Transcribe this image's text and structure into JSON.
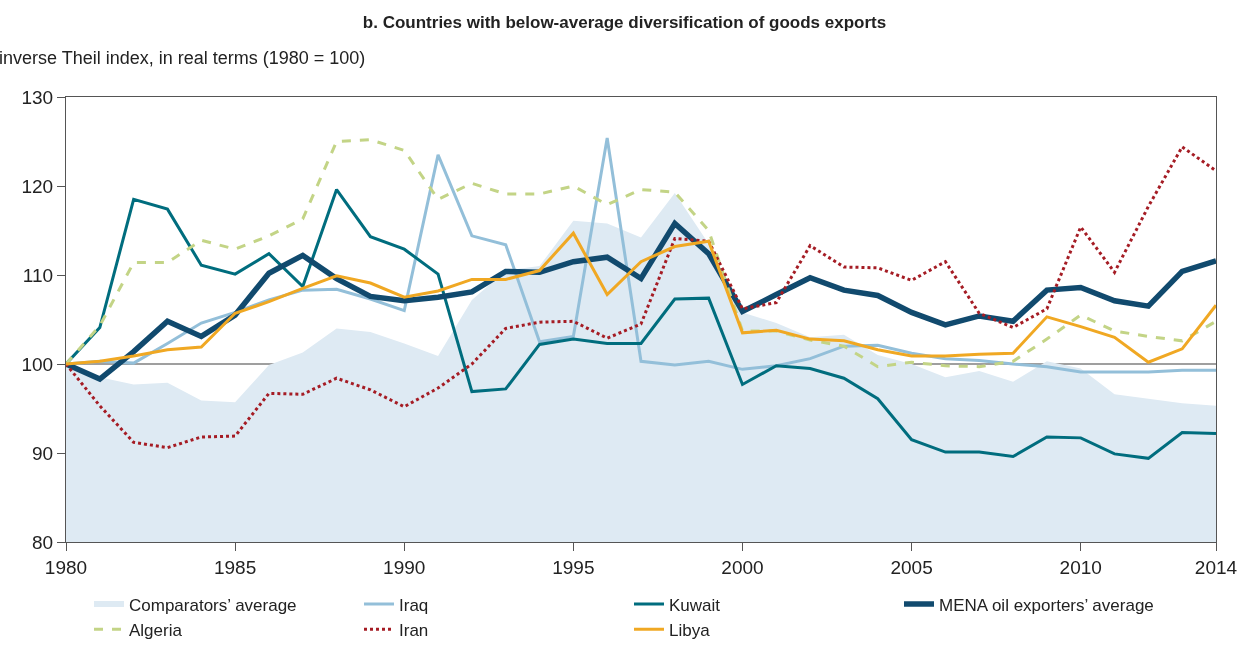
{
  "chart_data": {
    "type": "line",
    "title": "b. Countries with below-average diversification of goods exports",
    "ylabel": "inverse Theil index, in real terms (1980 = 100)",
    "x": [
      1980,
      1981,
      1982,
      1983,
      1984,
      1985,
      1986,
      1987,
      1988,
      1989,
      1990,
      1991,
      1992,
      1993,
      1994,
      1995,
      1996,
      1997,
      1998,
      1999,
      2000,
      2001,
      2002,
      2003,
      2004,
      2005,
      2006,
      2007,
      2008,
      2009,
      2010,
      2011,
      2012,
      2013,
      2014
    ],
    "xlim": [
      1980,
      2014
    ],
    "xticks": [
      1980,
      1985,
      1990,
      1995,
      2000,
      2005,
      2010,
      2014
    ],
    "ylim": [
      80,
      130
    ],
    "yticks": [
      80,
      90,
      100,
      110,
      120,
      130
    ],
    "grid": false,
    "legend": "bottom",
    "marker": "none",
    "ref_lines": [
      {
        "axis": "y",
        "value": 100,
        "color": "#7f7f7f"
      }
    ],
    "series": [
      {
        "name": "Comparators’ average",
        "type": "area",
        "color": "#deeaf3",
        "values": [
          100,
          98.5,
          97.7,
          97.9,
          95.9,
          95.7,
          99.9,
          101.3,
          104,
          103.6,
          102.3,
          100.9,
          107.2,
          110.5,
          111,
          116.1,
          115.8,
          114.2,
          119.2,
          113.5,
          105.8,
          104.6,
          103,
          103.3,
          101,
          100,
          98.5,
          99.2,
          98,
          100.3,
          99.5,
          96.6,
          96.1,
          95.6,
          95.3
        ]
      },
      {
        "name": "Iraq",
        "line_style": "solid",
        "color": "#93bfd9",
        "values": [
          100,
          100.3,
          100.1,
          102.3,
          104.6,
          105.8,
          107.2,
          108.3,
          108.4,
          107.3,
          106,
          123.5,
          114.4,
          113.4,
          102.5,
          103.1,
          125.4,
          100.3,
          99.9,
          100.3,
          99.4,
          99.8,
          100.6,
          102,
          102.1,
          101.2,
          100.6,
          100.4,
          100,
          99.7,
          99.1,
          99.1,
          99.1,
          99.3,
          99.3
        ]
      },
      {
        "name": "Kuwait",
        "line_style": "solid",
        "color": "#006d7e",
        "values": [
          100,
          104.1,
          118.5,
          117.4,
          111.1,
          110.1,
          112.4,
          108.7,
          119.6,
          114.3,
          112.9,
          110.1,
          96.9,
          97.2,
          102.2,
          102.8,
          102.3,
          102.3,
          107.3,
          107.4,
          97.7,
          99.8,
          99.5,
          98.4,
          96.1,
          91.5,
          90.1,
          90.1,
          89.6,
          91.8,
          91.7,
          89.9,
          89.4,
          92.3,
          92.2
        ]
      },
      {
        "name": "MENA oil exporters’ average",
        "line_style": "solid",
        "color": "#114a6e",
        "values": [
          100,
          98.3,
          101.4,
          104.8,
          103.1,
          105.5,
          110.2,
          112.2,
          109.6,
          107.6,
          107.1,
          107.5,
          108.1,
          110.4,
          110.3,
          111.5,
          112,
          109.6,
          115.8,
          112.4,
          105.9,
          107.8,
          109.7,
          108.3,
          107.7,
          105.8,
          104.4,
          105.4,
          104.8,
          108.3,
          108.6,
          107.1,
          106.5,
          110.4,
          111.6
        ]
      },
      {
        "name": "Algeria",
        "line_style": "dashed",
        "color": "#c3d486",
        "values": [
          100,
          104.3,
          111.4,
          111.4,
          113.9,
          112.9,
          114.4,
          116.3,
          125,
          125.2,
          124,
          118.5,
          120.3,
          119.1,
          119.1,
          120,
          117.9,
          119.6,
          119.3,
          115,
          103.7,
          103.7,
          102.7,
          102,
          99.7,
          100.2,
          99.8,
          99.7,
          100.3,
          102.8,
          105.5,
          103.7,
          103.1,
          102.6,
          104.8
        ]
      },
      {
        "name": "Iran",
        "line_style": "dotted",
        "color": "#a51c24",
        "values": [
          100,
          95.3,
          91.2,
          90.6,
          91.8,
          91.9,
          96.7,
          96.6,
          98.4,
          97.1,
          95.2,
          97.3,
          100,
          104,
          104.7,
          104.8,
          102.9,
          104.5,
          114.1,
          113.8,
          106.2,
          106.9,
          113.3,
          110.9,
          110.8,
          109.4,
          111.5,
          105.7,
          104.1,
          106.2,
          115.4,
          110.3,
          117.7,
          124.4,
          121.7
        ]
      },
      {
        "name": "Libya",
        "line_style": "solid",
        "color": "#f0a823",
        "values": [
          100,
          100.3,
          100.9,
          101.6,
          101.9,
          105.7,
          107,
          108.5,
          109.9,
          109.1,
          107.5,
          108.2,
          109.5,
          109.5,
          110.5,
          114.7,
          107.8,
          111.5,
          113.2,
          113.8,
          103.5,
          103.8,
          102.8,
          102.6,
          101.6,
          100.9,
          100.9,
          101.1,
          101.2,
          105.3,
          104.2,
          103,
          100.2,
          101.7,
          106.6
        ]
      }
    ]
  }
}
